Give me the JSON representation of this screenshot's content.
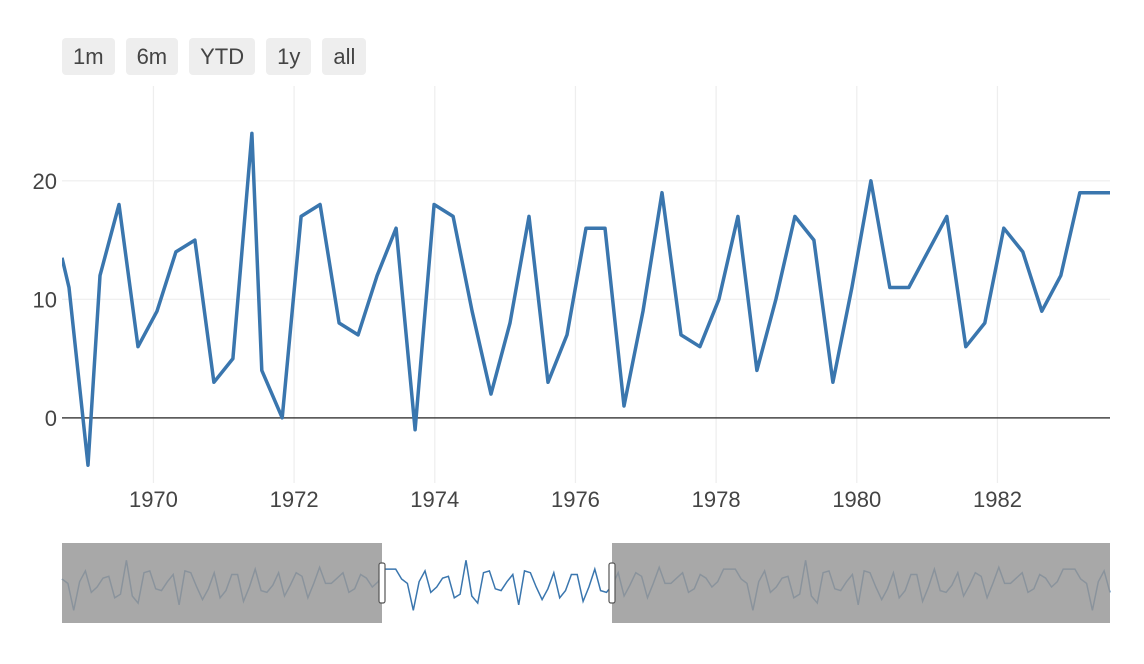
{
  "range_selector": {
    "buttons": [
      "1m",
      "6m",
      "YTD",
      "1y",
      "all"
    ]
  },
  "colors": {
    "line": "#3a76ae",
    "zero_line": "#444444",
    "grid": "#eeeeee",
    "shade": "#999999"
  },
  "chart_data": {
    "type": "line",
    "title": "",
    "xlabel": "",
    "ylabel": "",
    "x_ticks": [
      "1970",
      "1972",
      "1974",
      "1976",
      "1978",
      "1980",
      "1982"
    ],
    "y_ticks": [
      "0",
      "10",
      "20"
    ],
    "xlim": [
      1968.7,
      1983.6
    ],
    "ylim": [
      -5.5,
      28
    ],
    "grid": true,
    "legend": "none",
    "range_slider": {
      "visible": true,
      "window": [
        1968.7,
        1983.6
      ]
    },
    "series": [
      {
        "x": [
          1968.7,
          1968.8,
          1969.07,
          1969.24,
          1969.51,
          1969.78,
          1970.05,
          1970.32,
          1970.59,
          1970.86,
          1971.13,
          1971.4,
          1971.54,
          1971.83,
          1972.1,
          1972.37,
          1972.64,
          1972.91,
          1973.18,
          1973.45,
          1973.72,
          1973.99,
          1974.26,
          1974.53,
          1974.8,
          1975.07,
          1975.34,
          1975.61,
          1975.88,
          1976.15,
          1976.42,
          1976.69,
          1976.96,
          1977.23,
          1977.5,
          1977.77,
          1978.04,
          1978.31,
          1978.58,
          1978.85,
          1979.12,
          1979.39,
          1979.66,
          1979.93,
          1980.2,
          1980.47,
          1980.74,
          1981.01,
          1981.28,
          1981.55,
          1981.82,
          1982.09,
          1982.36,
          1982.63,
          1982.9,
          1983.17,
          1983.44,
          1983.6
        ],
        "y": [
          13.5,
          11,
          -4,
          12,
          18,
          6,
          9,
          14,
          15,
          3,
          5,
          24,
          4,
          0,
          17,
          18,
          8,
          7,
          12,
          16,
          -1,
          18,
          17,
          9,
          2,
          8,
          17,
          3,
          7,
          16,
          16,
          1,
          9,
          19,
          7,
          6,
          10,
          17,
          4,
          10,
          17,
          15,
          3,
          11,
          20,
          11,
          11,
          14,
          17,
          6,
          8,
          16,
          14,
          9,
          12,
          19,
          19,
          19
        ]
      }
    ]
  }
}
